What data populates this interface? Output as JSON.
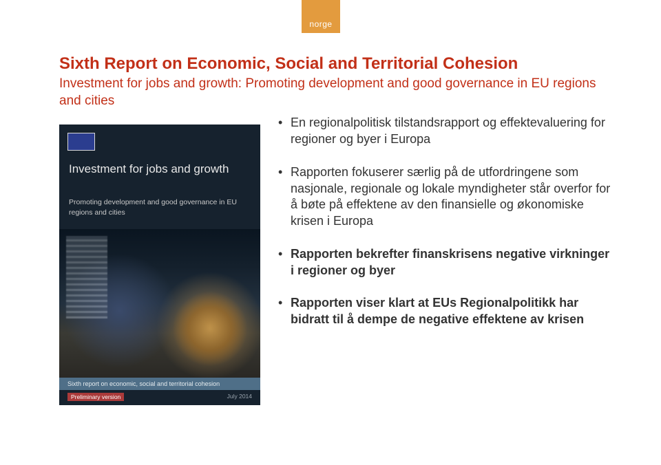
{
  "accent": {
    "label": "norge",
    "bg": "#e39b3e",
    "text_color": "#ffffff"
  },
  "title": "Sixth Report on Economic, Social and Territorial Cohesion",
  "subtitle": "Investment for jobs and growth: Promoting development and good governance in EU regions and cities",
  "title_color": "#c23018",
  "cover": {
    "title": "Investment for jobs and growth",
    "subtitle": "Promoting development and good governance in EU regions and cities",
    "ribbon": "Sixth report on economic, social and territorial cohesion",
    "prelim": "Preliminary version",
    "date": "July 2014",
    "bg": "#16222e"
  },
  "bullets": [
    "En regionalpolitisk tilstandsrapport og effektevaluering for regioner og byer i Europa",
    "Rapporten fokuserer særlig på de utfordringene som nasjonale, regionale og lokale myndigheter står overfor for å bøte på effektene av den finansielle og økonomiske krisen i Europa",
    "Rapporten bekrefter finanskrisens negative virkninger i regioner og byer",
    "Rapporten viser klart at EUs Regionalpolitikk har bidratt til å dempe de negative effektene av krisen"
  ],
  "bold_indices": [
    2,
    3
  ],
  "body_color": "#333333",
  "body_fontsize": 18
}
